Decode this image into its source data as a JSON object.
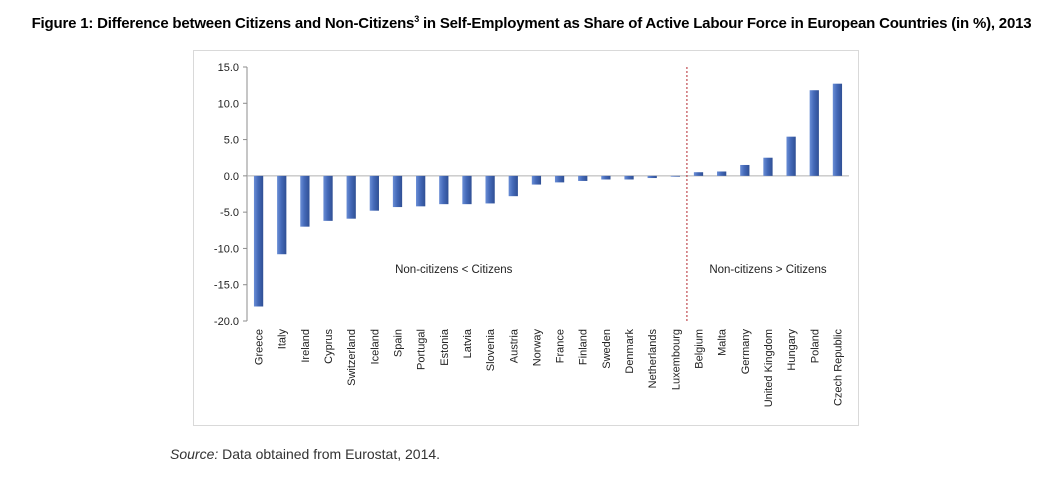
{
  "title": {
    "main": "Figure 1: Difference between Citizens and Non-Citizens",
    "footnote_mark": "3",
    "rest": " in Self-Employment as Share of Active Labour Force in European Countries (in %), 2013"
  },
  "source": {
    "label": "Source:",
    "text": " Data obtained from Eurostat, 2014."
  },
  "chart_data": {
    "type": "bar",
    "title": "Figure 1: Difference between Citizens and Non-Citizens3 in Self-Employment as Share of Active Labour Force in European Countries (in %), 2013",
    "categories": [
      "Greece",
      "Italy",
      "Ireland",
      "Cyprus",
      "Switzerland",
      "Iceland",
      "Spain",
      "Portugal",
      "Estonia",
      "Latvia",
      "Slovenia",
      "Austria",
      "Norway",
      "France",
      "Finland",
      "Sweden",
      "Denmark",
      "Netherlands",
      "Luxembourg",
      "Belgium",
      "Malta",
      "Germany",
      "United Kingdom",
      "Hungary",
      "Poland",
      "Czech Republic"
    ],
    "values": [
      -18.0,
      -10.8,
      -7.0,
      -6.2,
      -5.9,
      -4.8,
      -4.3,
      -4.2,
      -3.9,
      -3.9,
      -3.8,
      -2.8,
      -1.2,
      -0.9,
      -0.7,
      -0.5,
      -0.5,
      -0.3,
      -0.1,
      0.5,
      0.6,
      1.5,
      2.5,
      5.4,
      11.8,
      12.7
    ],
    "ylim": [
      -20,
      15
    ],
    "yticks": [
      "15.0",
      "10.0",
      "5.0",
      "0.0",
      "-5.0",
      "-10.0",
      "-15.0",
      "-20.0"
    ],
    "xlabel": "",
    "ylabel": "",
    "grid": false,
    "bar_color": "#4a6fbd",
    "divider_after": "Luxembourg",
    "divider_color": "#b3262d",
    "annotations": [
      {
        "text": "Non-citizens < Citizens"
      },
      {
        "text": "Non-citizens > Citizens"
      }
    ]
  }
}
